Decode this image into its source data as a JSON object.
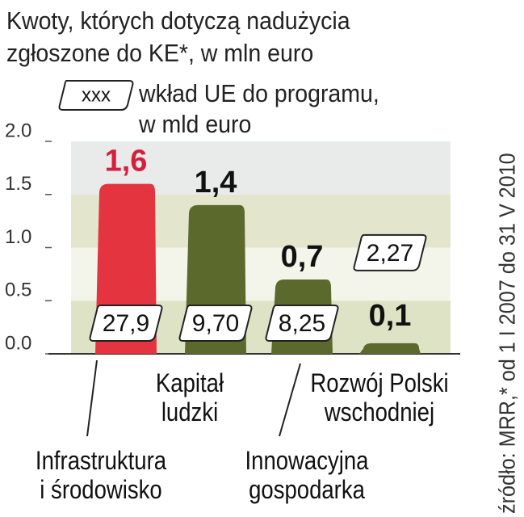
{
  "chart_data": {
    "type": "bar",
    "title_lines": [
      "Kwoty, których dotyczą nadużycia",
      "zgłoszone do KE*, w mln euro"
    ],
    "legend": {
      "box_label": "xxx",
      "text_lines": [
        "wkład UE do programu,",
        "w mld euro"
      ]
    },
    "source": "źródło: MRR,* od 1 I 2007 do 31 V 2010",
    "categories": [
      "Infrastruktura\ni środowisko",
      "Kapitał\nludzki",
      "Innowacyjna\ngospodarka",
      "Rozwój Polski\nwschodniej"
    ],
    "values": [
      1.6,
      1.4,
      0.7,
      0.1
    ],
    "value_labels": [
      "1,6",
      "1,4",
      "0,7",
      "0,1"
    ],
    "colors": [
      "#e4343f",
      "#5b6a2c",
      "#5b6a2c",
      "#5b6a2c"
    ],
    "label_colors": [
      "#d4203a",
      "#111111",
      "#111111",
      "#111111"
    ],
    "contributions": {
      "values": [
        27.9,
        9.7,
        8.25,
        2.27
      ],
      "value_labels": [
        "27,9",
        "9,70",
        "8,25",
        "2,27"
      ]
    },
    "ylim": [
      0,
      2
    ],
    "yticks": [
      {
        "value": 0,
        "label": "0.0"
      },
      0.5,
      {
        "value": 1,
        "label": "1.0"
      },
      1.5,
      {
        "value": 2,
        "label": "2.0"
      }
    ]
  }
}
